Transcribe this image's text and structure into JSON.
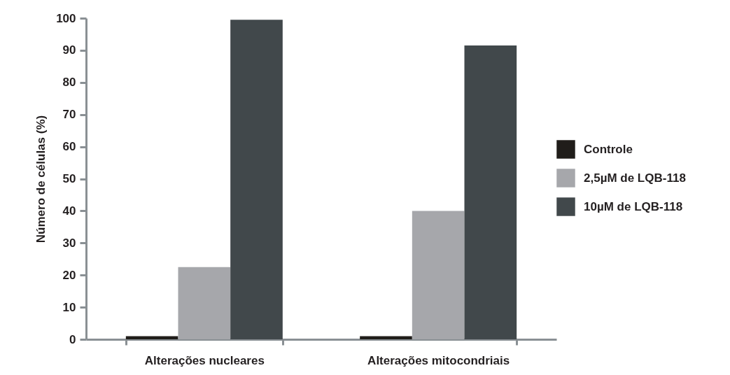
{
  "chart_data": {
    "type": "bar",
    "ylabel": "Número de células (%)",
    "categories": [
      "Alterações nucleares",
      "Alterações mitocondriais"
    ],
    "series": [
      {
        "name": "Controle",
        "color": "#201d1a",
        "values": [
          1,
          1
        ]
      },
      {
        "name": "2,5µM de LQB-118",
        "color": "#a6a7ab",
        "values": [
          22.5,
          40
        ]
      },
      {
        "name": "10µM de LQB-118",
        "color": "#41484b",
        "values": [
          99.5,
          91.5
        ]
      }
    ],
    "ylim": [
      0,
      100
    ],
    "yticks": [
      0,
      10,
      20,
      30,
      40,
      50,
      60,
      70,
      80,
      90,
      100
    ],
    "grid": false,
    "legend": "right"
  }
}
